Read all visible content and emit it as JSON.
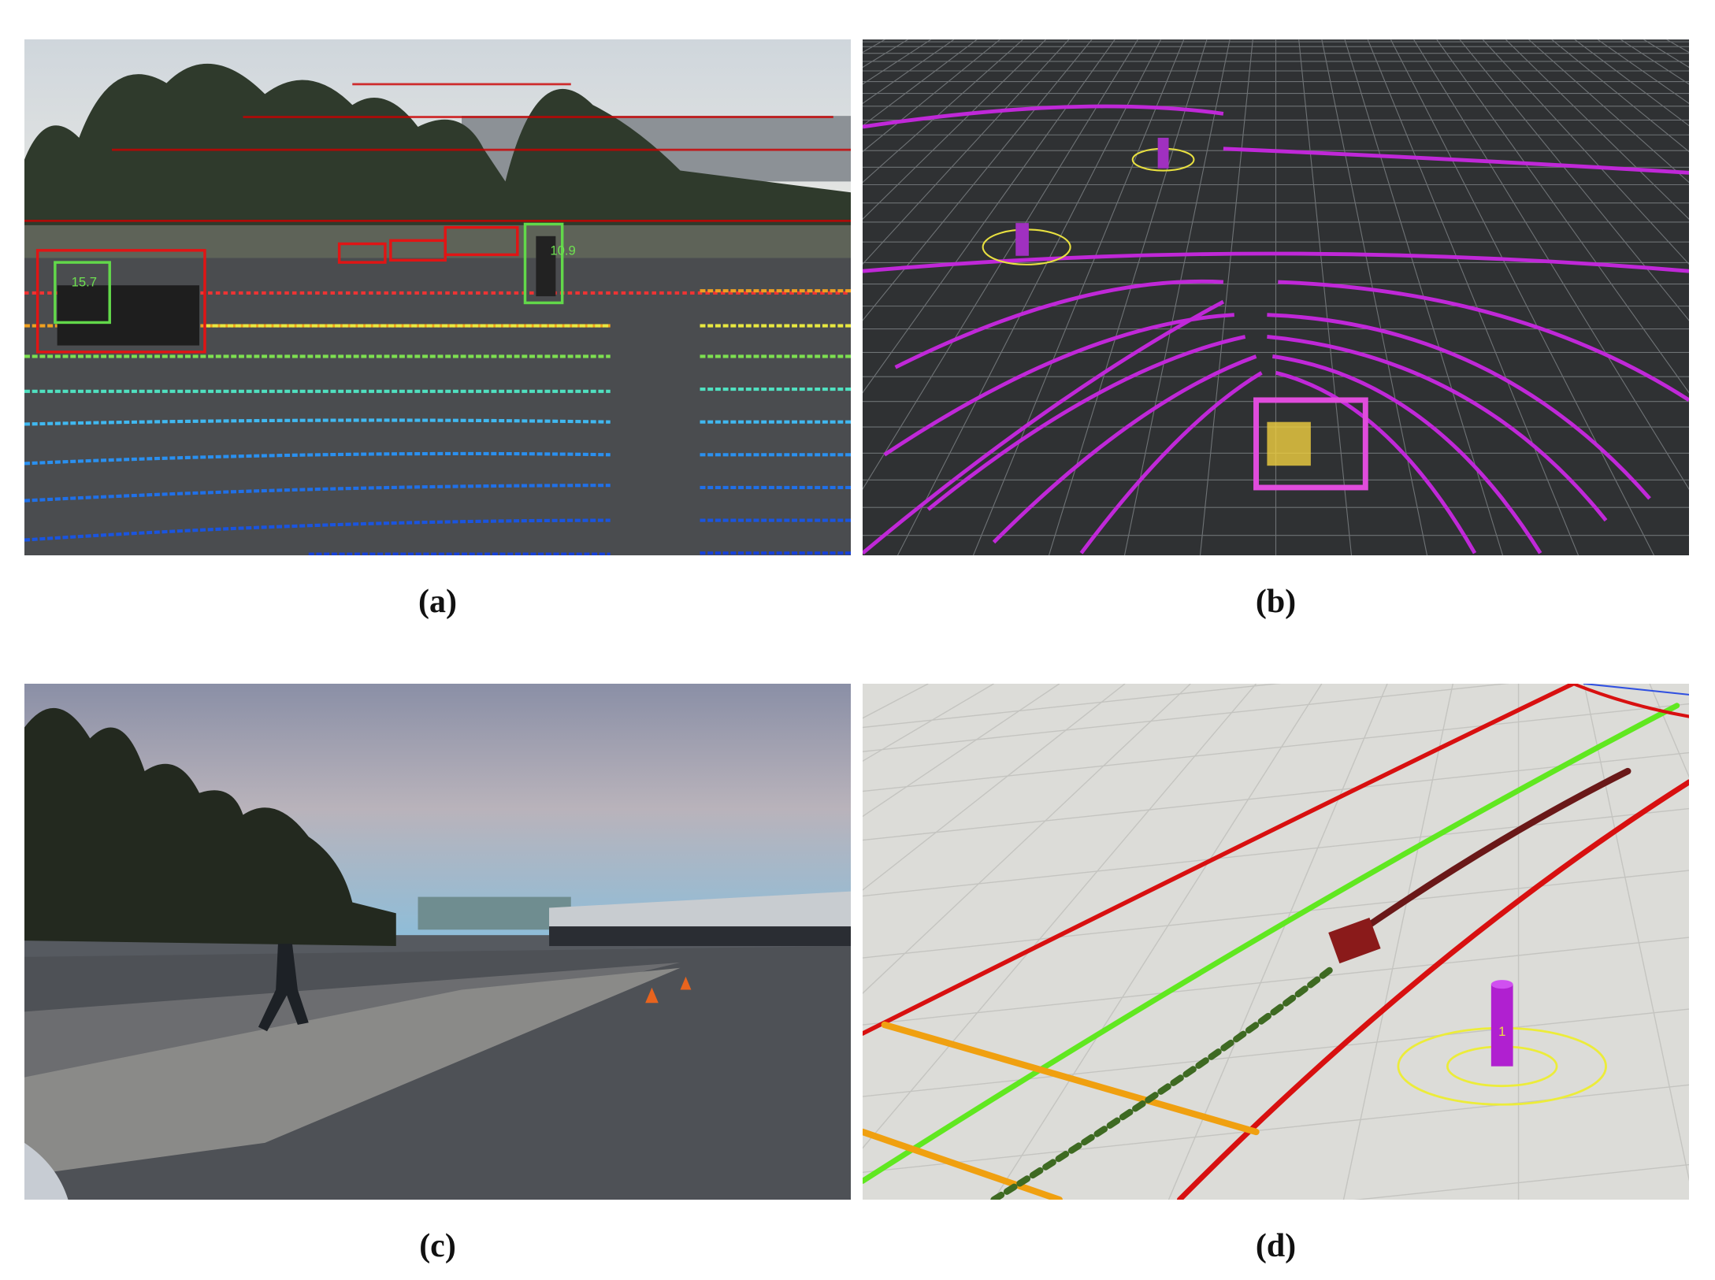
{
  "panels": {
    "a": {
      "caption": "(a)",
      "labels": [
        "15.7",
        "10.9"
      ]
    },
    "b": {
      "caption": "(b)"
    },
    "c": {
      "caption": "(c)"
    },
    "d": {
      "caption": "(d)",
      "labels": [
        "1"
      ]
    }
  }
}
